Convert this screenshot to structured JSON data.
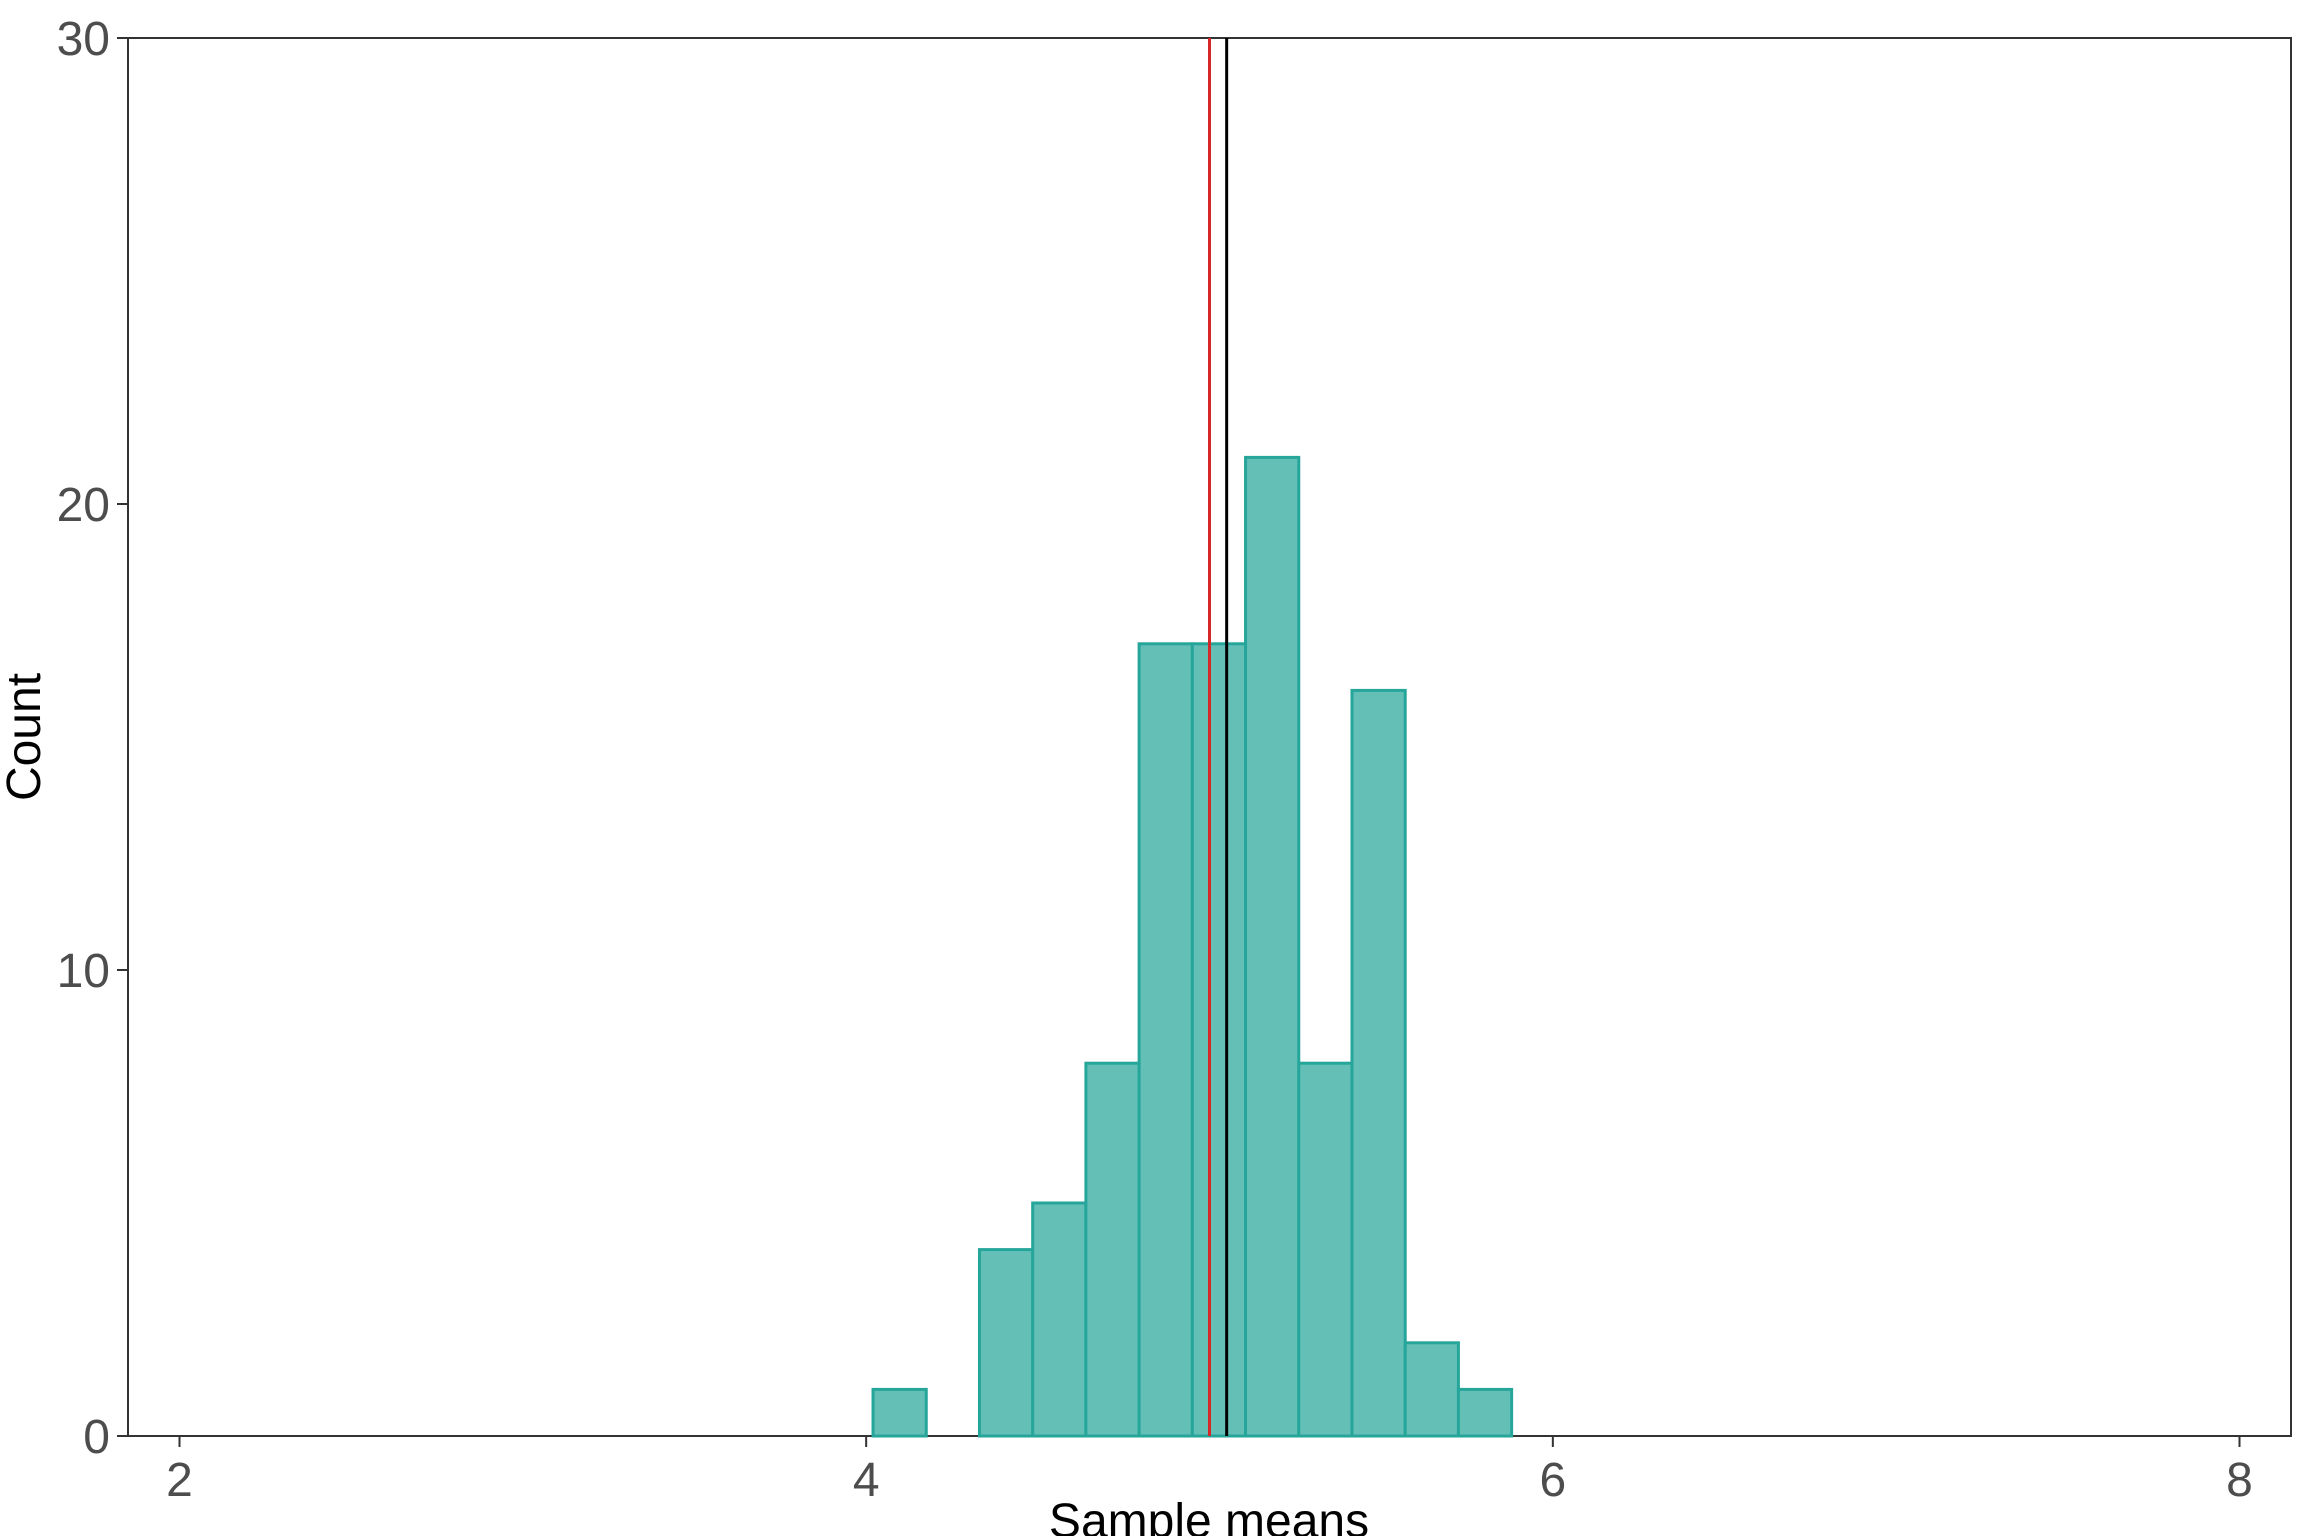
{
  "chart_data": {
    "type": "bar",
    "title": "",
    "xlabel": "Sample means",
    "ylabel": "Count",
    "xlim": [
      1.85,
      8.15
    ],
    "ylim": [
      0,
      30
    ],
    "x_ticks": [
      2,
      4,
      6,
      8
    ],
    "y_ticks": [
      0,
      10,
      20,
      30
    ],
    "bin_width": 0.155,
    "bins": [
      {
        "x0": 4.02,
        "x1": 4.175,
        "count": 1
      },
      {
        "x0": 4.33,
        "x1": 4.485,
        "count": 4
      },
      {
        "x0": 4.485,
        "x1": 4.64,
        "count": 5
      },
      {
        "x0": 4.64,
        "x1": 4.795,
        "count": 8
      },
      {
        "x0": 4.795,
        "x1": 4.95,
        "count": 17
      },
      {
        "x0": 4.95,
        "x1": 5.105,
        "count": 17
      },
      {
        "x0": 5.105,
        "x1": 5.26,
        "count": 21
      },
      {
        "x0": 5.26,
        "x1": 5.415,
        "count": 8
      },
      {
        "x0": 5.415,
        "x1": 5.57,
        "count": 16
      },
      {
        "x0": 5.57,
        "x1": 5.725,
        "count": 2
      },
      {
        "x0": 5.725,
        "x1": 5.88,
        "count": 1
      }
    ],
    "vlines": [
      {
        "x": 5.0,
        "color": "#d62728"
      },
      {
        "x": 5.05,
        "color": "#000000"
      }
    ],
    "grid": false,
    "bar_fill": "#64c0b7",
    "bar_stroke": "#26a69a",
    "legend": "none"
  }
}
